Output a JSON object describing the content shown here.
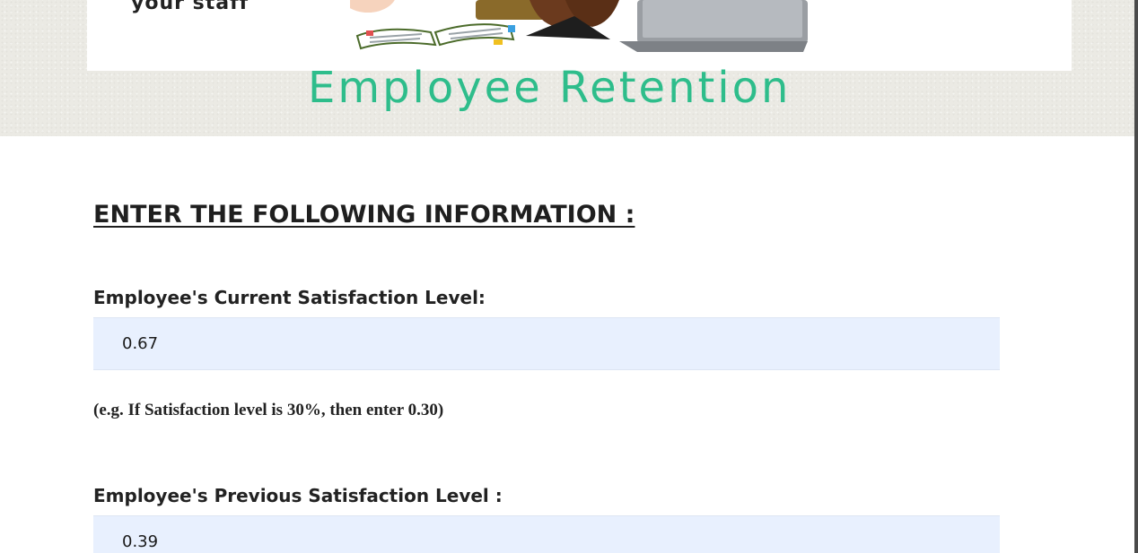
{
  "banner": {
    "tagline": "your staff",
    "heading": "Employee Retention",
    "heading_color": "#2ebd8b"
  },
  "form": {
    "title": "ENTER THE FOLLOWING INFORMATION :",
    "current_satisfaction": {
      "label": "Employee's Current Satisfaction Level:",
      "value": "0.67",
      "hint": "(e.g. If Satisfaction level is 30%, then enter 0.30)"
    },
    "previous_satisfaction": {
      "label": "Employee's Previous Satisfaction Level :",
      "value": "0.39"
    }
  },
  "colors": {
    "input_background": "#e8f0fe",
    "text": "#222222"
  }
}
